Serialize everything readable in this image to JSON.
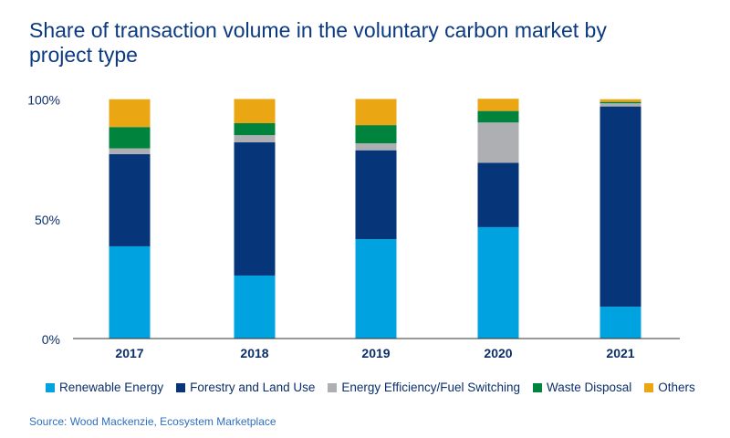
{
  "chart_data": {
    "type": "bar",
    "stacked": true,
    "title": "Share of transaction volume in the voluntary carbon market by project type",
    "categories": [
      "2017",
      "2018",
      "2019",
      "2020",
      "2021"
    ],
    "ylim": [
      0,
      100
    ],
    "yticks": [
      "0%",
      "50%",
      "100%"
    ],
    "ytick_values": [
      0,
      50,
      100
    ],
    "grid": false,
    "legend_position": "bottom",
    "series": [
      {
        "name": "Renewable Energy",
        "color": "#00a3e0",
        "values": [
          38.5,
          26.3,
          41.5,
          46.5,
          13.3
        ]
      },
      {
        "name": "Forestry and Land Use",
        "color": "#06357a",
        "values": [
          38.5,
          55.6,
          37.1,
          26.9,
          83.6
        ]
      },
      {
        "name": "Energy Efficiency/Fuel Switching",
        "color": "#adafb2",
        "values": [
          2.4,
          3.0,
          2.9,
          16.8,
          1.3
        ]
      },
      {
        "name": "Waste Disposal",
        "color": "#00843d",
        "values": [
          8.9,
          5.0,
          7.6,
          4.8,
          0.6
        ]
      },
      {
        "name": "Others",
        "color": "#eaa613",
        "values": [
          11.6,
          10.1,
          10.9,
          5.1,
          1.1
        ]
      }
    ],
    "source": "Source: Wood Mackenzie, Ecosystem Marketplace"
  }
}
